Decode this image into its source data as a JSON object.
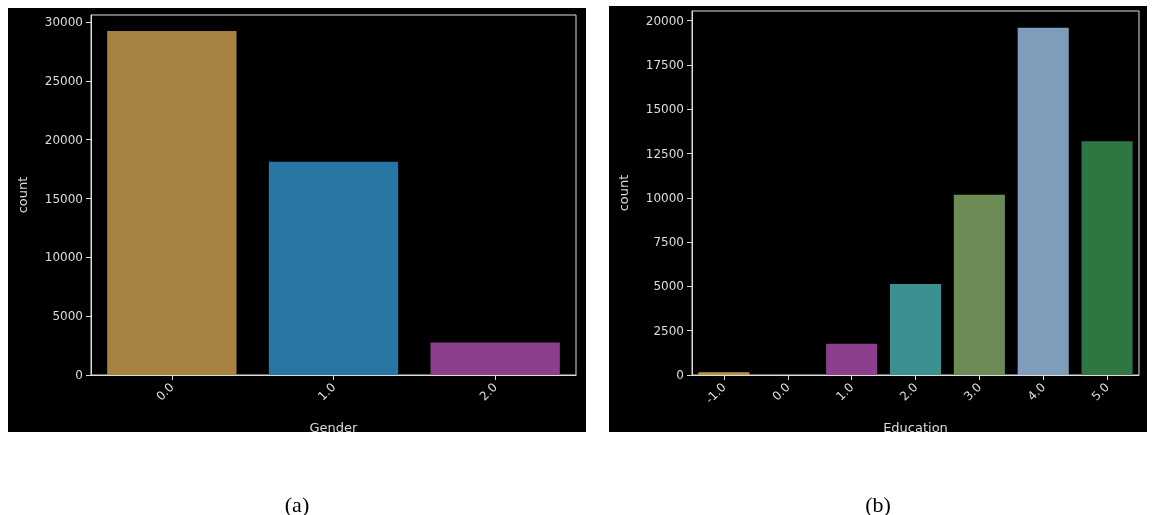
{
  "chart_data": [
    {
      "type": "bar",
      "xlabel": "Gender",
      "ylabel": "count",
      "categories": [
        "0.0",
        "1.0",
        "2.0"
      ],
      "values": [
        29240,
        18120,
        2770
      ],
      "colors": [
        "#a5823f",
        "#2876a3",
        "#8b3f8d"
      ],
      "ylim": [
        0,
        30600
      ],
      "yticks": [
        0,
        5000,
        10000,
        15000,
        20000,
        25000,
        30000
      ],
      "grid": false,
      "annotations": [
        "(a)"
      ]
    },
    {
      "type": "bar",
      "xlabel": "Education",
      "ylabel": "count",
      "categories": [
        "-1.0",
        "0.0",
        "1.0",
        "2.0",
        "3.0",
        "4.0",
        "5.0"
      ],
      "values": [
        160,
        0,
        1770,
        5140,
        10170,
        19600,
        13190
      ],
      "colors": [
        "#c3953e",
        "#c44e52",
        "#8b3f8d",
        "#3a9190",
        "#6d8b55",
        "#7f9dba",
        "#2f7642"
      ],
      "ylim": [
        0,
        20550
      ],
      "yticks": [
        0,
        2500,
        5000,
        7500,
        10000,
        12500,
        15000,
        17500,
        20000
      ],
      "grid": false,
      "annotations": [
        "(b)"
      ]
    }
  ]
}
